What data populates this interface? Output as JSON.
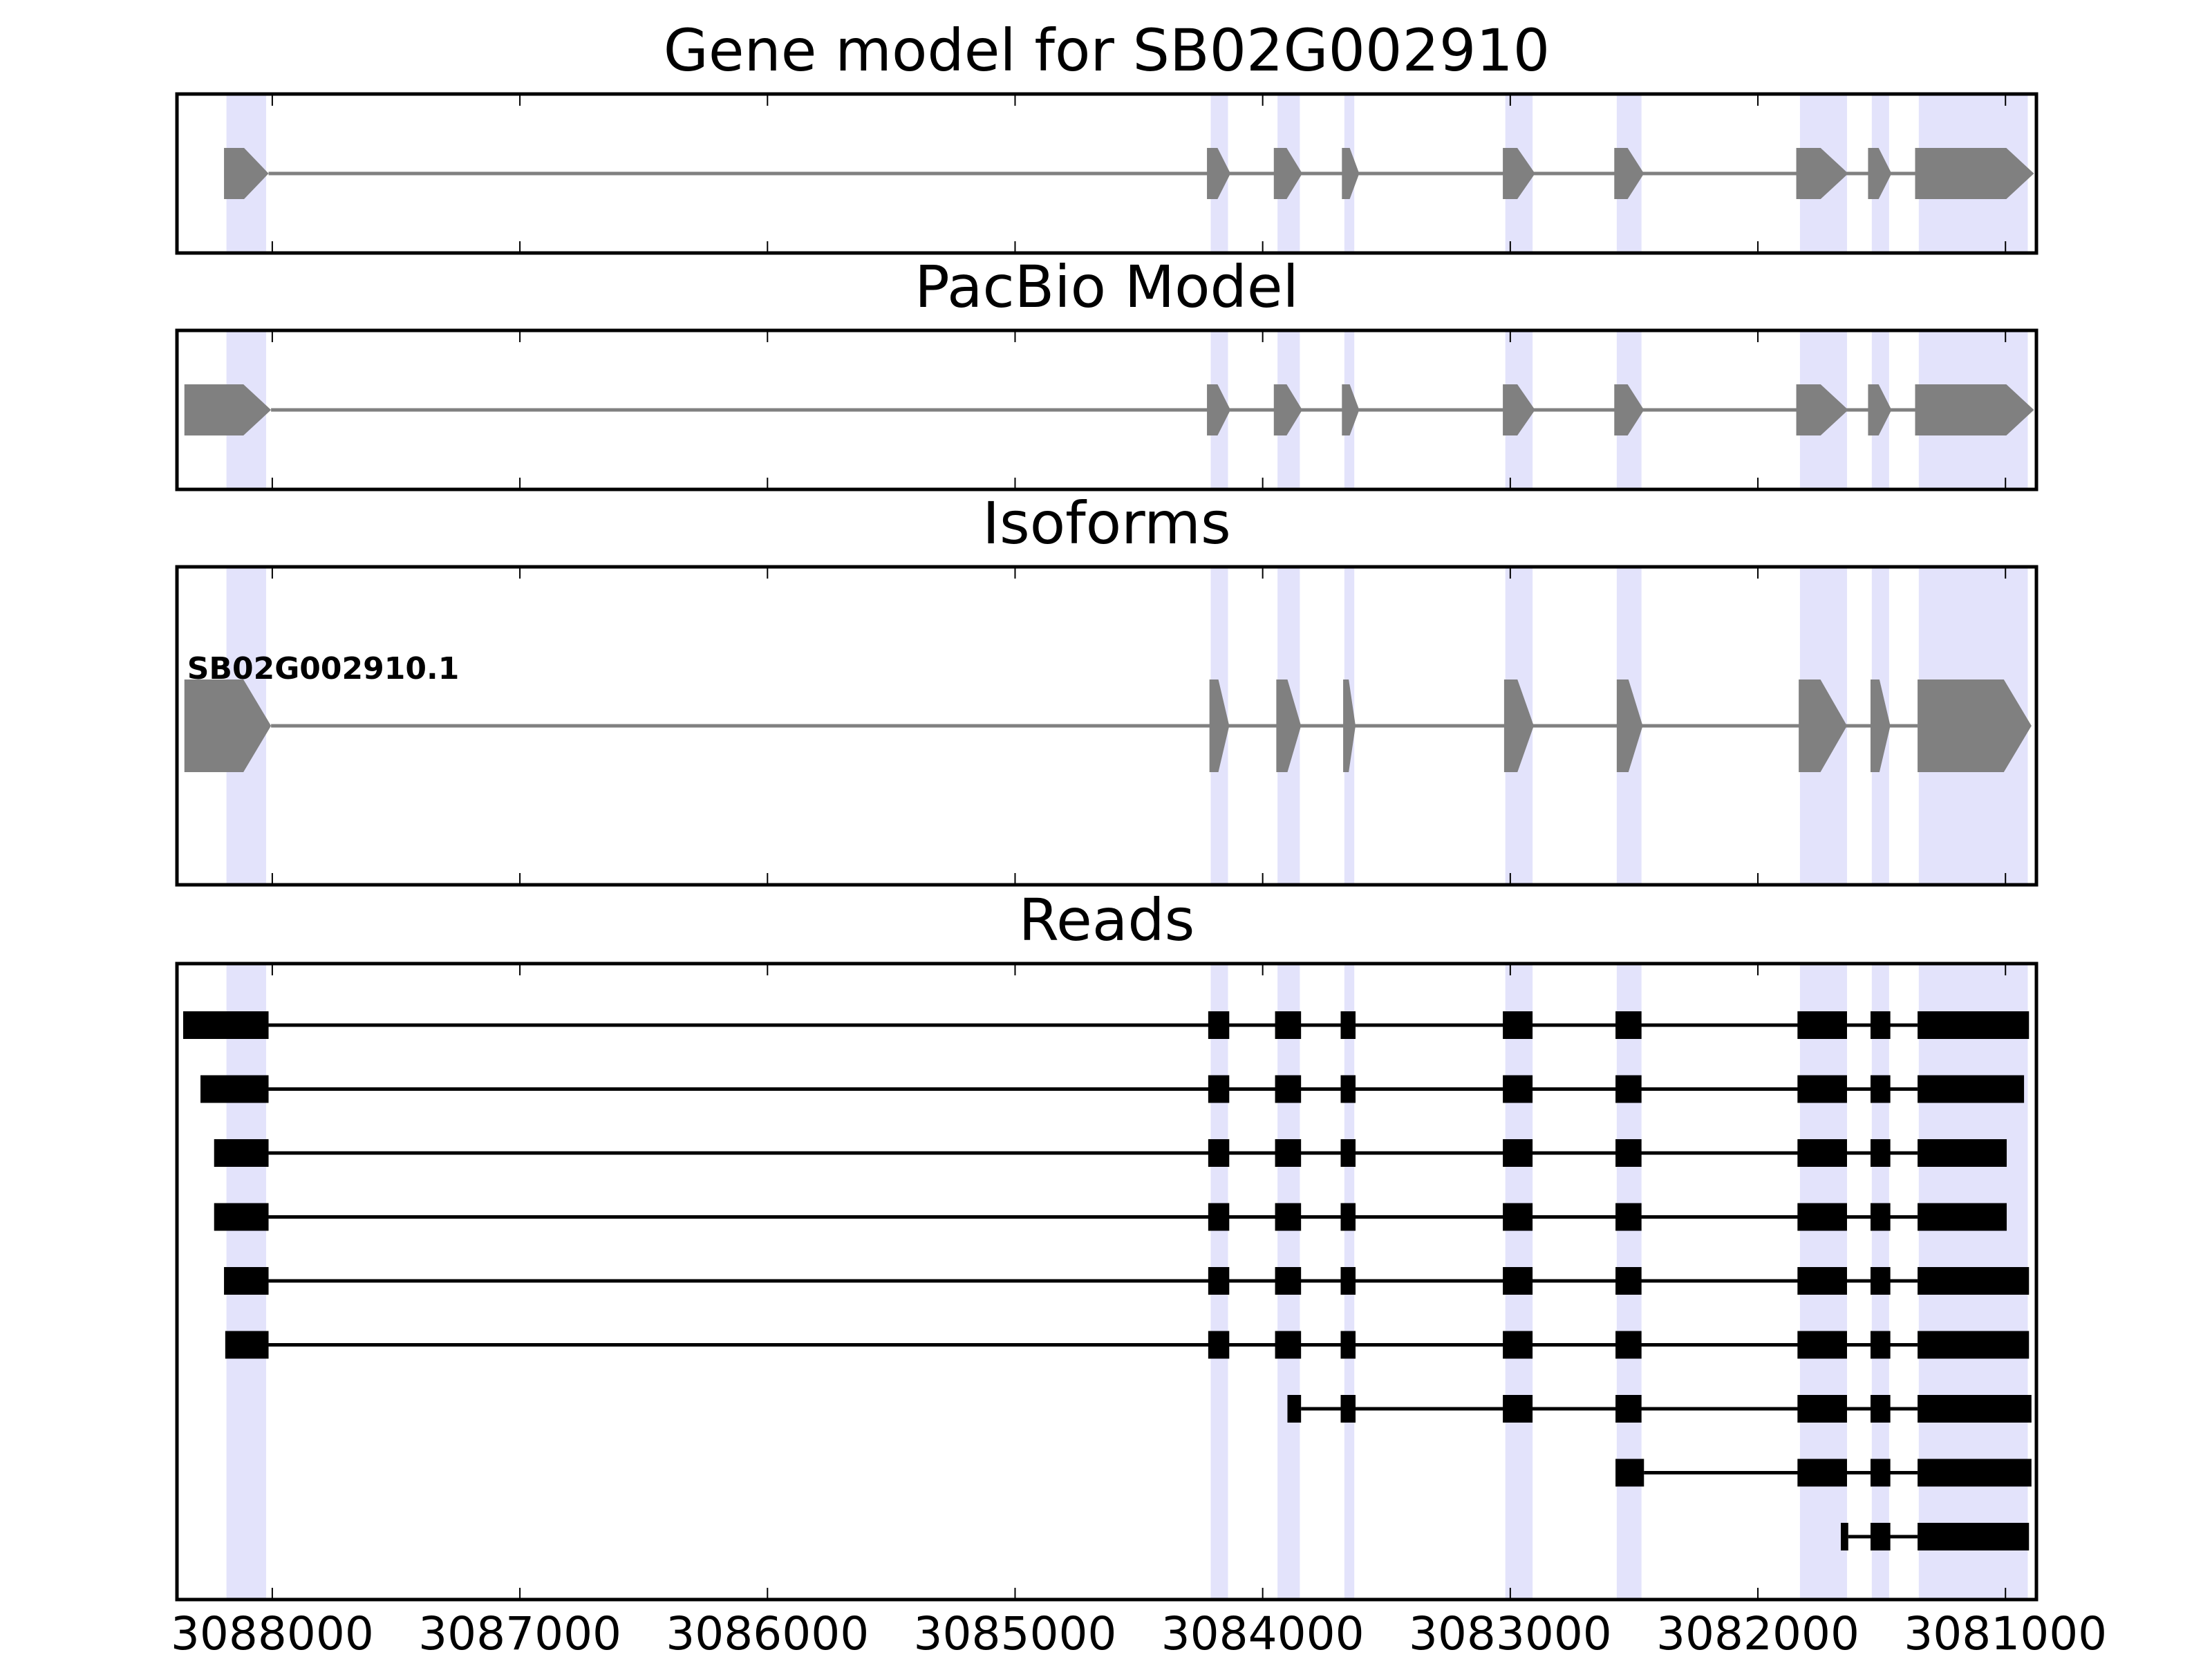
{
  "chart_data": {
    "type": "gene_track",
    "x_axis": {
      "range": [
        3088385,
        3080875
      ],
      "reversed": true,
      "ticks": [
        3088000,
        3087000,
        3086000,
        3085000,
        3084000,
        3083000,
        3082000,
        3081000
      ],
      "tick_labels": [
        "3088000",
        "3087000",
        "3086000",
        "3085000",
        "3084000",
        "3083000",
        "3082000",
        "3081000"
      ]
    },
    "colors": {
      "exon_fill": "#808080",
      "intron_line": "#808080",
      "read": "#000000",
      "highlight": "#e3e3fb",
      "frame": "#000000"
    },
    "highlight_regions": [
      [
        3088185,
        3088025
      ],
      [
        3084210,
        3084140
      ],
      [
        3083940,
        3083850
      ],
      [
        3083670,
        3083630
      ],
      [
        3083020,
        3082910
      ],
      [
        3082570,
        3082470
      ],
      [
        3081830,
        3081640
      ],
      [
        3081540,
        3081470
      ],
      [
        3081350,
        3080910
      ]
    ],
    "panels": [
      {
        "title": "Gene model for SB02G002910",
        "kind": "model",
        "transcripts": [
          {
            "label": "",
            "exons": [
              [
                3088195,
                3088015
              ],
              [
                3084225,
                3084130
              ],
              [
                3083955,
                3083840
              ],
              [
                3083680,
                3083610
              ],
              [
                3083030,
                3082900
              ],
              [
                3082580,
                3082460
              ],
              [
                3081845,
                3081635
              ],
              [
                3081555,
                3081460
              ],
              [
                3081365,
                3080885
              ]
            ]
          }
        ]
      },
      {
        "title": "PacBio Model",
        "kind": "model",
        "transcripts": [
          {
            "label": "",
            "exons": [
              [
                3088355,
                3088005
              ],
              [
                3084225,
                3084130
              ],
              [
                3083955,
                3083840
              ],
              [
                3083680,
                3083610
              ],
              [
                3083030,
                3082900
              ],
              [
                3082580,
                3082460
              ],
              [
                3081845,
                3081635
              ],
              [
                3081555,
                3081460
              ],
              [
                3081365,
                3080885
              ]
            ]
          }
        ]
      },
      {
        "title": "Isoforms",
        "kind": "model",
        "transcripts": [
          {
            "label": "SB02G002910.1",
            "exons": [
              [
                3088355,
                3088005
              ],
              [
                3084215,
                3084135
              ],
              [
                3083945,
                3083845
              ],
              [
                3083675,
                3083625
              ],
              [
                3083025,
                3082905
              ],
              [
                3082570,
                3082465
              ],
              [
                3081835,
                3081640
              ],
              [
                3081545,
                3081465
              ],
              [
                3081355,
                3080895
              ]
            ]
          }
        ]
      },
      {
        "title": "Reads",
        "kind": "reads",
        "reads": [
          {
            "exons": [
              [
                3088360,
                3088015
              ],
              [
                3084220,
                3084135
              ],
              [
                3083950,
                3083845
              ],
              [
                3083685,
                3083625
              ],
              [
                3083030,
                3082910
              ],
              [
                3082575,
                3082470
              ],
              [
                3081840,
                3081640
              ],
              [
                3081545,
                3081465
              ],
              [
                3081355,
                3080905
              ]
            ]
          },
          {
            "exons": [
              [
                3088290,
                3088015
              ],
              [
                3084220,
                3084135
              ],
              [
                3083950,
                3083845
              ],
              [
                3083685,
                3083625
              ],
              [
                3083030,
                3082910
              ],
              [
                3082575,
                3082470
              ],
              [
                3081840,
                3081640
              ],
              [
                3081545,
                3081465
              ],
              [
                3081355,
                3080925
              ]
            ]
          },
          {
            "exons": [
              [
                3088235,
                3088015
              ],
              [
                3084220,
                3084135
              ],
              [
                3083950,
                3083845
              ],
              [
                3083685,
                3083625
              ],
              [
                3083030,
                3082910
              ],
              [
                3082575,
                3082470
              ],
              [
                3081840,
                3081640
              ],
              [
                3081545,
                3081465
              ],
              [
                3081355,
                3080995
              ]
            ]
          },
          {
            "exons": [
              [
                3088235,
                3088015
              ],
              [
                3084220,
                3084135
              ],
              [
                3083950,
                3083845
              ],
              [
                3083685,
                3083625
              ],
              [
                3083030,
                3082910
              ],
              [
                3082575,
                3082470
              ],
              [
                3081840,
                3081640
              ],
              [
                3081545,
                3081465
              ],
              [
                3081355,
                3080995
              ]
            ]
          },
          {
            "exons": [
              [
                3088195,
                3088015
              ],
              [
                3084220,
                3084135
              ],
              [
                3083950,
                3083845
              ],
              [
                3083685,
                3083625
              ],
              [
                3083030,
                3082910
              ],
              [
                3082575,
                3082470
              ],
              [
                3081840,
                3081640
              ],
              [
                3081545,
                3081465
              ],
              [
                3081355,
                3080905
              ]
            ]
          },
          {
            "exons": [
              [
                3088190,
                3088015
              ],
              [
                3084220,
                3084135
              ],
              [
                3083950,
                3083845
              ],
              [
                3083685,
                3083625
              ],
              [
                3083030,
                3082910
              ],
              [
                3082575,
                3082470
              ],
              [
                3081840,
                3081640
              ],
              [
                3081545,
                3081465
              ],
              [
                3081355,
                3080905
              ]
            ]
          },
          {
            "exons": [
              [
                3083900,
                3083845
              ],
              [
                3083685,
                3083625
              ],
              [
                3083030,
                3082910
              ],
              [
                3082575,
                3082470
              ],
              [
                3081840,
                3081640
              ],
              [
                3081545,
                3081465
              ],
              [
                3081355,
                3080895
              ]
            ]
          },
          {
            "exons": [
              [
                3082575,
                3082460
              ],
              [
                3081840,
                3081640
              ],
              [
                3081545,
                3081465
              ],
              [
                3081355,
                3080895
              ]
            ]
          },
          {
            "exons": [
              [
                3081665,
                3081635
              ],
              [
                3081545,
                3081465
              ],
              [
                3081355,
                3080905
              ]
            ]
          }
        ]
      }
    ]
  }
}
